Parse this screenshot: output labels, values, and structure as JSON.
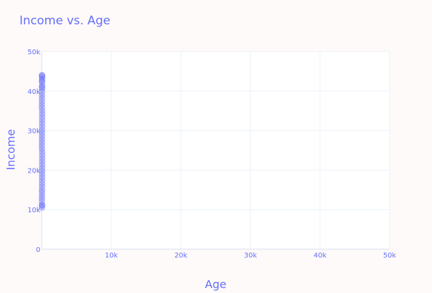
{
  "chart_data": {
    "type": "scatter",
    "title": "Income vs. Age",
    "xlabel": "Age",
    "ylabel": "Income",
    "xlim": [
      0,
      50000
    ],
    "ylim": [
      0,
      50000
    ],
    "x_ticks": [
      {
        "value": 10000,
        "label": "10k"
      },
      {
        "value": 20000,
        "label": "20k"
      },
      {
        "value": 30000,
        "label": "30k"
      },
      {
        "value": 40000,
        "label": "40k"
      },
      {
        "value": 50000,
        "label": "50k"
      }
    ],
    "y_ticks": [
      {
        "value": 0,
        "label": "0"
      },
      {
        "value": 10000,
        "label": "10k"
      },
      {
        "value": 20000,
        "label": "20k"
      },
      {
        "value": 30000,
        "label": "30k"
      },
      {
        "value": 40000,
        "label": "40k"
      },
      {
        "value": 50000,
        "label": "50k"
      }
    ],
    "grid": true,
    "colors": {
      "marker": "#636efa",
      "text": "#636efa",
      "plot_bg": "#ffffff",
      "paper_bg": "#fffafa",
      "grid": "#ebf0f8"
    },
    "series": [
      {
        "x": [
          18,
          22,
          25,
          27,
          30,
          33,
          35,
          38,
          40,
          42,
          45,
          48,
          50,
          52,
          55,
          58,
          60,
          62,
          64,
          20,
          24,
          29,
          31,
          36,
          39,
          44,
          47,
          51,
          54,
          57,
          61,
          63,
          19,
          23,
          26,
          28,
          34,
          37,
          41,
          46,
          49,
          53,
          56,
          59,
          21,
          32,
          43,
          65
        ],
        "y": [
          10500,
          11200,
          12000,
          12800,
          13500,
          14300,
          15000,
          15800,
          16600,
          17400,
          18200,
          19000,
          19800,
          20600,
          21400,
          22200,
          23000,
          23800,
          24600,
          25400,
          26200,
          27000,
          27800,
          28600,
          29400,
          30200,
          31000,
          31800,
          32600,
          33400,
          34200,
          35000,
          35800,
          36600,
          37400,
          38200,
          39000,
          39800,
          40600,
          41400,
          42200,
          43000,
          43500,
          43900,
          44000,
          42600,
          41000,
          11000
        ]
      }
    ]
  }
}
